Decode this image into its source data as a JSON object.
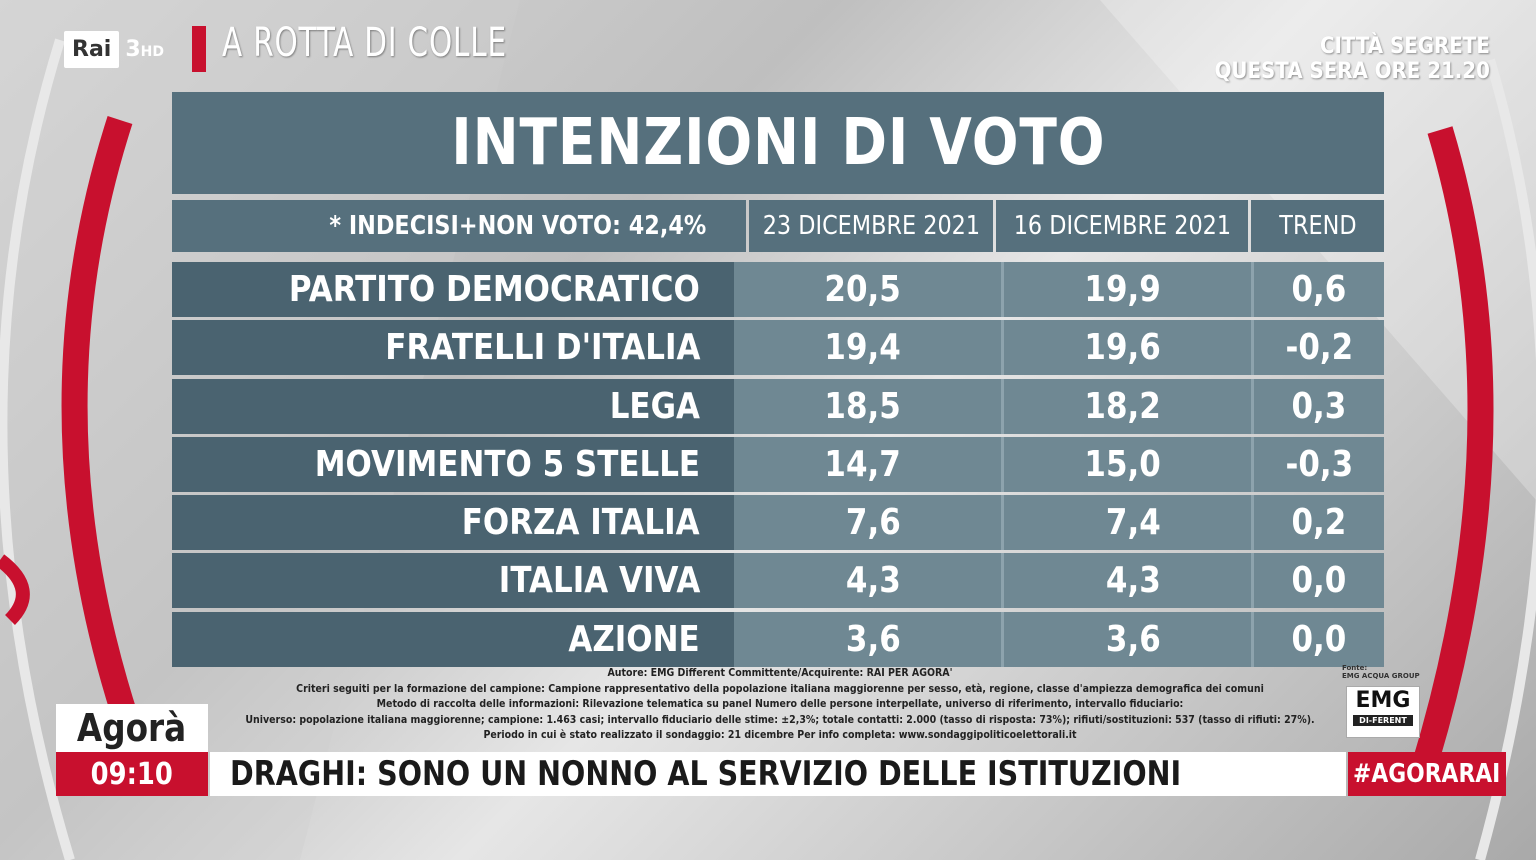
{
  "channel": {
    "logo_text": "Rai",
    "channel_number": "3",
    "channel_suffix": "HD"
  },
  "show": {
    "title": "A ROTTA DI COLLE"
  },
  "promo": {
    "line1": "CITTÀ SEGRETE",
    "line2": "QUESTA SERA ORE 21.20"
  },
  "poll": {
    "title": "INTENZIONI DI VOTO",
    "note": "* INDECISI+NON VOTO: 42,4%",
    "col_headers": [
      "23 DICEMBRE 2021",
      "16 DICEMBRE 2021",
      "TREND"
    ],
    "rows": [
      {
        "party": "PARTITO DEMOCRATICO",
        "v1": "20,5",
        "v2": "19,9",
        "trend": "0,6"
      },
      {
        "party": "FRATELLI D'ITALIA",
        "v1": "19,4",
        "v2": "19,6",
        "trend": "-0,2"
      },
      {
        "party": "LEGA",
        "v1": "18,5",
        "v2": "18,2",
        "trend": "0,3"
      },
      {
        "party": "MOVIMENTO 5 STELLE",
        "v1": "14,7",
        "v2": "15,0",
        "trend": "-0,3"
      },
      {
        "party": "FORZA ITALIA",
        "v1": "7,6",
        "v2": "7,4",
        "trend": "0,2"
      },
      {
        "party": "ITALIA VIVA",
        "v1": "4,3",
        "v2": "4,3",
        "trend": "0,0"
      },
      {
        "party": "AZIONE",
        "v1": "3,6",
        "v2": "3,6",
        "trend": "0,0"
      }
    ],
    "footnote": [
      "Autore: EMG Different Committente/Acquirente: RAI PER AGORA'",
      "Criteri seguiti per la formazione del campione: Campione rappresentativo della popolazione italiana maggiorenne per sesso, età, regione, classe d'ampiezza demografica dei comuni",
      "Metodo di raccolta delle informazioni: Rilevazione telematica su panel Numero delle persone interpellate, universo di riferimento, intervallo fiduciario:",
      "Universo: popolazione italiana maggiorenne; campione: 1.463 casi; intervallo fiduciario delle stime: ±2,3%; totale contatti: 2.000 (tasso di risposta: 73%); rifiuti/sostituzioni: 537  (tasso di rifiuti: 27%).",
      "Periodo in cui è stato realizzato il sondaggio: 21 dicembre  Per info completa: www.sondaggipoliticoelettorali.it"
    ],
    "source_label": "Fonte:",
    "source_group": "EMG ACQUA GROUP",
    "source_logo": "EMG",
    "source_logo_sub": "DI-FERENT"
  },
  "lower_third": {
    "program": "Agorà",
    "time": "09:10",
    "headline": "DRAGHI: SONO UN NONNO AL SERVIZIO DELLE ISTITUZIONI",
    "hashtag": "#AGORARAI"
  }
}
